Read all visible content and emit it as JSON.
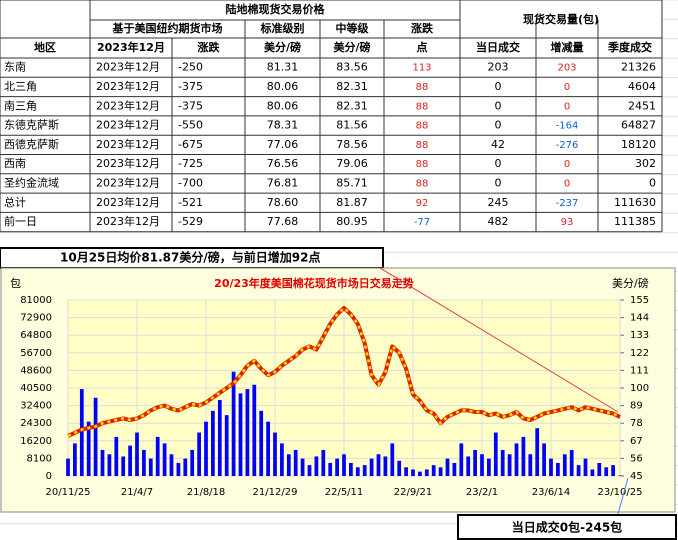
{
  "table": {
    "title": "陆地棉现货交易价格",
    "volume_title": "现货交易量(包)",
    "subheaders": [
      "基于美国纽约期货市场",
      "标准级别",
      "中等级",
      "涨跌"
    ],
    "columns": [
      "地区",
      "2023年12月",
      "涨跌",
      "美分/磅",
      "美分/磅",
      "点",
      "当日成交",
      "增减量",
      "季度成交"
    ],
    "pos_color": "#e02020",
    "neg_color": "#1060d0",
    "rows": [
      [
        "东南",
        "2023年12月",
        -250,
        81.31,
        83.56,
        113,
        203,
        203,
        21326
      ],
      [
        "北三角",
        "2023年12月",
        -375,
        80.06,
        82.31,
        88,
        0,
        0,
        4604
      ],
      [
        "南三角",
        "2023年12月",
        -375,
        80.06,
        82.31,
        88,
        0,
        0,
        2451
      ],
      [
        "东德克萨斯",
        "2023年12月",
        -550,
        78.31,
        81.56,
        88,
        0,
        -164,
        64827
      ],
      [
        "西德克萨斯",
        "2023年12月",
        -675,
        77.06,
        78.56,
        88,
        42,
        -276,
        18120
      ],
      [
        "西南",
        "2023年12月",
        -725,
        76.56,
        79.06,
        88,
        0,
        0,
        302
      ],
      [
        "圣约金流域",
        "2023年12月",
        -700,
        76.81,
        85.71,
        88,
        0,
        0,
        0
      ],
      [
        "总计",
        "2023年12月",
        -521,
        78.6,
        81.87,
        92,
        245,
        -237,
        111630
      ],
      [
        "前一日",
        "2023年12月",
        -529,
        77.68,
        80.95,
        -77,
        482,
        93,
        111385
      ]
    ]
  },
  "chart_data": {
    "type": "bar_line",
    "title": "20/23年度美国棉花现货市场日交易走势",
    "annotation": "10月25日均价81.87美分/磅，与前日增加92点",
    "footnote": "当日成交0包-245包",
    "ylabel": "包",
    "y2label": "美分/磅",
    "categories": [
      "20/11/25",
      null,
      null,
      null,
      null,
      null,
      null,
      null,
      null,
      null,
      "21/4/7",
      null,
      null,
      null,
      null,
      null,
      null,
      null,
      null,
      null,
      "21/8/18",
      null,
      null,
      null,
      null,
      null,
      null,
      null,
      null,
      null,
      "21/12/29",
      null,
      null,
      null,
      null,
      null,
      null,
      null,
      null,
      null,
      "22/5/11",
      null,
      null,
      null,
      null,
      null,
      null,
      null,
      null,
      null,
      "22/9/21",
      null,
      null,
      null,
      null,
      null,
      null,
      null,
      null,
      null,
      "23/2/1",
      null,
      null,
      null,
      null,
      null,
      null,
      null,
      null,
      null,
      "23/6/14",
      null,
      null,
      null,
      null,
      null,
      null,
      null,
      null,
      null,
      "23/10/25"
    ],
    "ylim": [
      0,
      81000
    ],
    "yticks": [
      0,
      8100,
      16200,
      24300,
      32400,
      40500,
      48600,
      56700,
      64800,
      72900,
      81000
    ],
    "y2lim": [
      45,
      155
    ],
    "y2ticks": [
      45,
      56,
      67,
      78,
      89,
      100,
      111,
      122,
      133,
      144,
      155
    ],
    "grid": true,
    "series": [
      {
        "type": "bar",
        "color": "#0000ff",
        "values": [
          8000,
          15000,
          40000,
          25000,
          36000,
          12000,
          10000,
          18000,
          9000,
          14000,
          20000,
          12000,
          8000,
          18000,
          15000,
          10000,
          6000,
          8000,
          12000,
          20000,
          25000,
          30000,
          35000,
          28000,
          48000,
          38000,
          40000,
          42000,
          30000,
          25000,
          20000,
          15000,
          10000,
          12000,
          8000,
          5000,
          9000,
          12000,
          6000,
          8000,
          10000,
          6000,
          4000,
          5000,
          8000,
          10000,
          9000,
          15000,
          7000,
          4000,
          3000,
          2000,
          3000,
          5000,
          4000,
          8000,
          6000,
          15000,
          9000,
          12000,
          10000,
          8000,
          20000,
          12000,
          10000,
          15000,
          18000,
          10000,
          22000,
          15000,
          8000,
          6000,
          10000,
          12000,
          5000,
          8000,
          3000,
          6000,
          4000,
          5000,
          245
        ]
      },
      {
        "type": "line",
        "axis": "y2",
        "color": "#e02000",
        "values": [
          70,
          72,
          74,
          75,
          76,
          78,
          79,
          80,
          81,
          80,
          81,
          83,
          86,
          88,
          89,
          87,
          86,
          88,
          90,
          89,
          91,
          94,
          97,
          100,
          103,
          108,
          114,
          117,
          112,
          108,
          110,
          114,
          117,
          120,
          124,
          126,
          124,
          132,
          140,
          146,
          150,
          146,
          140,
          128,
          108,
          102,
          110,
          126,
          122,
          112,
          96,
          92,
          86,
          84,
          78,
          82,
          84,
          86,
          86,
          85,
          85,
          83,
          84,
          82,
          83,
          85,
          81,
          80,
          82,
          84,
          85,
          86,
          87,
          88,
          86,
          88,
          87,
          86,
          85,
          84,
          81.87
        ]
      }
    ]
  }
}
